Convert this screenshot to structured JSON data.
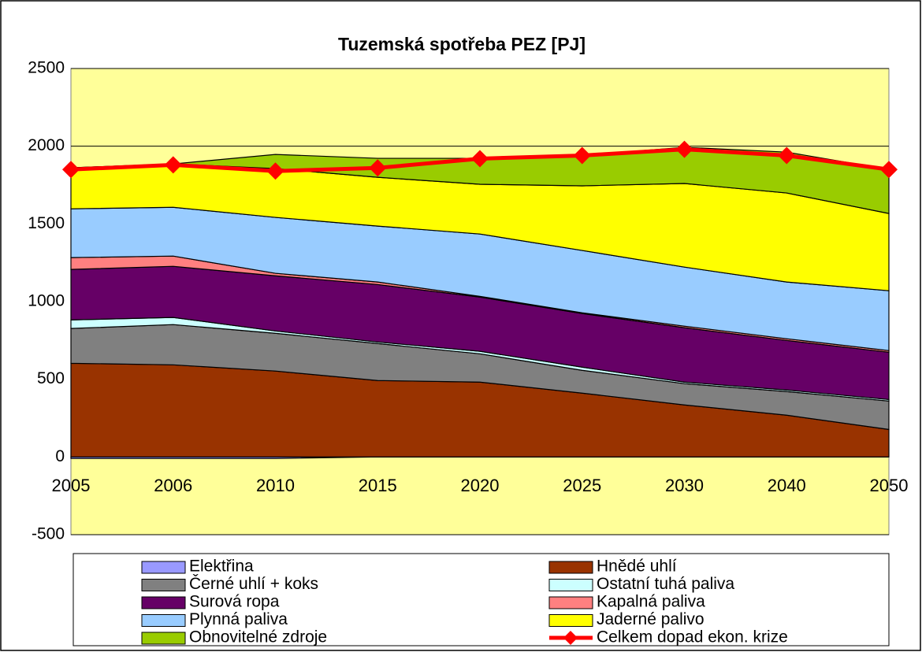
{
  "chart_data": {
    "type": "stacked-area-line",
    "title": "Tuzemská spotřeba PEZ [PJ]",
    "categories": [
      "2005",
      "2006",
      "2010",
      "2015",
      "2020",
      "2025",
      "2030",
      "2040",
      "2050"
    ],
    "series": [
      {
        "name": "Elektřina",
        "color": "#9999ff",
        "values": [
          -10,
          -10,
          -10,
          0,
          0,
          0,
          0,
          0,
          0
        ]
      },
      {
        "name": "Hnědé uhlí",
        "color": "#993300",
        "values": [
          603,
          593,
          553,
          492,
          482,
          411,
          335,
          269,
          177
        ]
      },
      {
        "name": "Černé uhlí + koks",
        "color": "#808080",
        "values": [
          224,
          259,
          243,
          238,
          182,
          147,
          137,
          152,
          183
        ]
      },
      {
        "name": "Ostatní tuhá paliva",
        "color": "#ccffff",
        "values": [
          55,
          46,
          15,
          10,
          16,
          20,
          10,
          10,
          10
        ]
      },
      {
        "name": "Surová ropa",
        "color": "#660066",
        "values": [
          325,
          329,
          355,
          370,
          349,
          345,
          350,
          319,
          304
        ]
      },
      {
        "name": "Kapalná paliva",
        "color": "#ff8080",
        "values": [
          76,
          66,
          16,
          16,
          5,
          5,
          10,
          11,
          11
        ]
      },
      {
        "name": "Plynná paliva",
        "color": "#99ccff",
        "values": [
          314,
          314,
          360,
          360,
          401,
          401,
          380,
          365,
          385
        ]
      },
      {
        "name": "Jaderné palivo",
        "color": "#ffff00",
        "values": [
          264,
          279,
          314,
          314,
          320,
          416,
          538,
          573,
          497
        ]
      },
      {
        "name": "Obnovitelné zdroje",
        "color": "#99cc00",
        "values": [
          0,
          0,
          91,
          122,
          167,
          197,
          233,
          263,
          283
        ]
      },
      {
        "name": "Celkem dopad ekon. krize",
        "color": "#ff0000",
        "type": "line",
        "values": [
          1850,
          1880,
          1840,
          1860,
          1920,
          1940,
          1980,
          1940,
          1850
        ]
      }
    ],
    "ylim": [
      -500,
      2500
    ],
    "yticks": [
      -500,
      0,
      500,
      1000,
      1500,
      2000,
      2500
    ],
    "grid": true
  }
}
